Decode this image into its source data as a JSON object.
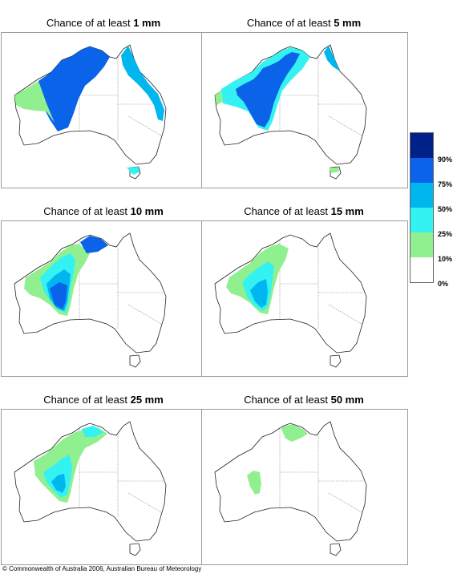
{
  "panels": [
    {
      "title_prefix": "Chance of at least ",
      "title_value": "1 mm",
      "bands": [
        {
          "level": "50-75%"
        },
        {
          "level": "75-90%"
        },
        {
          "level": "10-25%"
        },
        {
          "level": "25-50%"
        }
      ]
    },
    {
      "title_prefix": "Chance of at least ",
      "title_value": "5 mm",
      "bands": [
        {
          "level": "25-50%"
        },
        {
          "level": "50-75%"
        },
        {
          "level": "75-90%"
        },
        {
          "level": "10-25%"
        }
      ]
    },
    {
      "title_prefix": "Chance of at least ",
      "title_value": "10 mm",
      "bands": [
        {
          "level": "10-25%"
        },
        {
          "level": "25-50%"
        },
        {
          "level": "50-75%"
        },
        {
          "level": "75-90%"
        }
      ]
    },
    {
      "title_prefix": "Chance of at least ",
      "title_value": "15 mm",
      "bands": [
        {
          "level": "10-25%"
        },
        {
          "level": "25-50%"
        },
        {
          "level": "50-75%"
        }
      ]
    },
    {
      "title_prefix": "Chance of at least ",
      "title_value": "25 mm",
      "bands": [
        {
          "level": "10-25%"
        },
        {
          "level": "25-50%"
        },
        {
          "level": "50-75%"
        }
      ]
    },
    {
      "title_prefix": "Chance of at least ",
      "title_value": "50 mm",
      "bands": [
        {
          "level": "10-25%"
        }
      ]
    }
  ],
  "legend": {
    "labels": [
      "90%",
      "75%",
      "50%",
      "25%",
      "10%",
      "0%"
    ],
    "colors": {
      "90-100%": "#00208a",
      "75-90%": "#0a63e8",
      "50-75%": "#00b6ee",
      "25-50%": "#34f2f2",
      "10-25%": "#90f090",
      "0-10%": "#ffffff"
    }
  },
  "copyright": "© Commonwealth of Australia 2006, Australian Bureau of Meteorology"
}
